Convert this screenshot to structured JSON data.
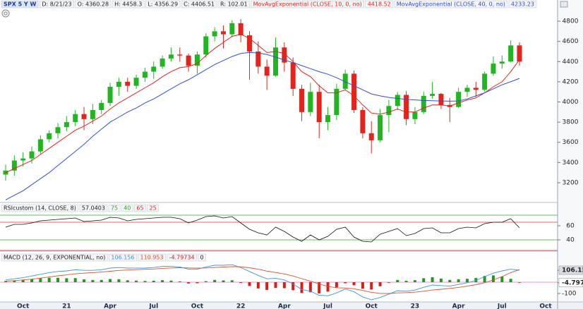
{
  "header": {
    "symbol": "SPX 5 Y W",
    "date": "D: 8/21/23",
    "open": "O: 4360.28",
    "high": "H: 4458.3",
    "low": "L: 4356.29",
    "close": "C: 4406.51",
    "range": "R: 102.01"
  },
  "chart_data": [
    {
      "type": "candlestick",
      "categories": [
        null,
        null,
        "Oct",
        null,
        null,
        null,
        null,
        "21",
        null,
        null,
        null,
        null,
        "Apr",
        null,
        null,
        null,
        null,
        "Jul",
        null,
        null,
        null,
        null,
        "Oct",
        null,
        null,
        null,
        null,
        "22",
        null,
        null,
        null,
        null,
        "Apr",
        null,
        null,
        null,
        null,
        "Jul",
        null,
        null,
        null,
        null,
        "Oct",
        null,
        null,
        null,
        null,
        "23",
        null,
        null,
        null,
        null,
        "Apr",
        null,
        null,
        null,
        null,
        "Jul",
        null,
        null,
        null,
        null,
        "Oct"
      ],
      "open": [
        3280,
        3320,
        3420,
        3440,
        3510,
        3630,
        3690,
        3750,
        3800,
        3880,
        3830,
        3920,
        3990,
        4150,
        4200,
        4160,
        4240,
        4300,
        4350,
        4430,
        4470,
        4460,
        4360,
        4470,
        4650,
        4700,
        4670,
        4780,
        4660,
        4500,
        4350,
        4260,
        4540,
        4390,
        4130,
        3900,
        4100,
        3800,
        3870,
        4130,
        4280,
        3920,
        3690,
        3620,
        3870,
        3960,
        4070,
        3830,
        3900,
        4060,
        4080,
        3970,
        3950,
        4100,
        4140,
        4120,
        4280,
        4380,
        4400,
        4560,
        null,
        null,
        null
      ],
      "high": [
        3380,
        3470,
        3500,
        3560,
        3670,
        3720,
        3790,
        3860,
        3920,
        3950,
        3980,
        4020,
        4190,
        4240,
        4240,
        4270,
        4340,
        4400,
        4460,
        4540,
        4540,
        4480,
        4500,
        4680,
        4740,
        4760,
        4810,
        4820,
        4700,
        4600,
        4420,
        4640,
        4590,
        4440,
        4170,
        4190,
        4170,
        3950,
        4180,
        4320,
        4310,
        3950,
        3810,
        3930,
        4020,
        4100,
        4110,
        3950,
        4100,
        4200,
        4090,
        4040,
        4140,
        4170,
        4200,
        4300,
        4450,
        4460,
        4610,
        4590,
        null,
        null,
        null
      ],
      "low": [
        3220,
        3270,
        3360,
        3390,
        3480,
        3600,
        3640,
        3710,
        3760,
        3720,
        3780,
        3880,
        3960,
        4060,
        4100,
        4130,
        4200,
        4230,
        4330,
        4400,
        4400,
        4300,
        4280,
        4440,
        4600,
        4530,
        4640,
        4590,
        4220,
        4280,
        4120,
        4250,
        4300,
        4060,
        3810,
        3860,
        3640,
        3720,
        3820,
        4120,
        3890,
        3640,
        3490,
        3600,
        3700,
        3920,
        3770,
        3780,
        3880,
        4030,
        3930,
        3800,
        3940,
        4050,
        4050,
        4100,
        4260,
        4330,
        4390,
        4360,
        null,
        null,
        null
      ],
      "close": [
        3320,
        3420,
        3440,
        3510,
        3630,
        3690,
        3750,
        3800,
        3880,
        3830,
        3920,
        3990,
        4150,
        4200,
        4160,
        4240,
        4300,
        4350,
        4430,
        4470,
        4460,
        4360,
        4470,
        4650,
        4700,
        4670,
        4780,
        4660,
        4500,
        4350,
        4260,
        4540,
        4390,
        4130,
        3900,
        4100,
        3800,
        3870,
        4130,
        4280,
        3920,
        3690,
        3620,
        3870,
        3960,
        4070,
        3830,
        3900,
        4060,
        4080,
        3970,
        3950,
        4100,
        4140,
        4120,
        4280,
        4380,
        4400,
        4560,
        4400,
        null,
        null,
        null
      ],
      "up_color": "#22b522",
      "down_color": "#e3241c",
      "series": [
        {
          "name": "MovAvgExponential (CLOSE, 10, 0, no)",
          "last_value": "4418.52",
          "color": "#e3241c",
          "values": [
            3300,
            3340,
            3380,
            3420,
            3480,
            3540,
            3600,
            3660,
            3720,
            3760,
            3810,
            3860,
            3930,
            3990,
            4040,
            4090,
            4140,
            4190,
            4250,
            4300,
            4340,
            4350,
            4380,
            4460,
            4530,
            4590,
            4650,
            4670,
            4630,
            4560,
            4490,
            4500,
            4480,
            4400,
            4300,
            4250,
            4160,
            4090,
            4090,
            4120,
            4060,
            3970,
            3890,
            3880,
            3900,
            3930,
            3900,
            3900,
            3940,
            3970,
            3970,
            3960,
            3990,
            4020,
            4040,
            4090,
            4150,
            4200,
            4300,
            4418.52,
            null,
            null,
            null
          ]
        },
        {
          "name": "MovAvgExponential (CLOSE, 40, 0, no)",
          "last_value": "4233.23",
          "color": "#2f4fd0",
          "values": [
            3030,
            3075,
            3120,
            3180,
            3240,
            3300,
            3370,
            3440,
            3510,
            3580,
            3660,
            3730,
            3800,
            3850,
            3900,
            3940,
            3990,
            4030,
            4080,
            4130,
            4180,
            4220,
            4270,
            4320,
            4370,
            4410,
            4450,
            4480,
            4490,
            4485,
            4470,
            4445,
            4415,
            4390,
            4360,
            4330,
            4300,
            4275,
            4240,
            4200,
            4160,
            4120,
            4080,
            4060,
            4045,
            4035,
            4025,
            4020,
            4015,
            4012,
            4010,
            4008,
            4010,
            4030,
            4060,
            4090,
            4130,
            4170,
            4200,
            4233.23,
            null,
            null,
            null
          ]
        }
      ],
      "ylim": [
        3018,
        5010
      ],
      "yticks": [
        4800,
        4600,
        4400,
        4200,
        4000,
        3800,
        3600,
        3400,
        3200
      ]
    },
    {
      "type": "line",
      "title": "RSIcustom (14, CLOSE, 8)",
      "last_value": "57.0403",
      "levels": [
        {
          "value": 75,
          "color": "#2fa52f"
        },
        {
          "value": 40,
          "color": "#2fa52f"
        },
        {
          "value": 65,
          "color": "#d9302a"
        },
        {
          "value": 25,
          "color": "#d9302a"
        }
      ],
      "series": [
        {
          "color": "#111111",
          "values": [
            58,
            62,
            62,
            64,
            67,
            68,
            69,
            70,
            71,
            66,
            67,
            68,
            72,
            71,
            67,
            69,
            70,
            71,
            72,
            72,
            70,
            64,
            68,
            73,
            74,
            71,
            73,
            64,
            55,
            50,
            47,
            58,
            52,
            44,
            38,
            47,
            40,
            45,
            55,
            58,
            44,
            38,
            37,
            48,
            52,
            56,
            46,
            49,
            56,
            57,
            50,
            50,
            56,
            58,
            57,
            63,
            65,
            65,
            70,
            57,
            null,
            null,
            null
          ]
        }
      ],
      "ylim": [
        26,
        80
      ],
      "yticks": [
        60,
        40
      ]
    },
    {
      "type": "macd",
      "title": "MACD (12, 26, 9, EXPONENTIAL, no)",
      "zero_level": 0,
      "zero_color": "#e070d0",
      "series": [
        {
          "last_value": "106.156",
          "color": "#3f93e0",
          "values": [
            20,
            30,
            40,
            55,
            70,
            85,
            95,
            100,
            110,
            105,
            105,
            110,
            125,
            130,
            125,
            125,
            125,
            130,
            140,
            140,
            135,
            115,
            115,
            135,
            150,
            150,
            155,
            130,
            95,
            60,
            30,
            35,
            20,
            -15,
            -65,
            -80,
            -115,
            -120,
            -95,
            -60,
            -85,
            -130,
            -155,
            -135,
            -105,
            -75,
            -80,
            -70,
            -45,
            -25,
            -30,
            -35,
            -20,
            -5,
            15,
            50,
            80,
            100,
            115,
            106,
            null,
            null,
            null
          ]
        },
        {
          "last_value": "110.953",
          "color": "#e0502a",
          "values": [
            10,
            14,
            20,
            27,
            36,
            46,
            56,
            65,
            74,
            80,
            85,
            90,
            97,
            104,
            108,
            111,
            114,
            117,
            122,
            126,
            128,
            126,
            124,
            126,
            130,
            134,
            138,
            136,
            128,
            115,
            98,
            86,
            73,
            55,
            31,
            9,
            -16,
            -37,
            -49,
            -51,
            -58,
            -73,
            -90,
            -99,
            -100,
            -95,
            -92,
            -88,
            -80,
            -69,
            -62,
            -55,
            -46,
            -35,
            -22,
            -5,
            20,
            50,
            85,
            111,
            null,
            null,
            null
          ]
        }
      ],
      "histogram": {
        "last_value": "-4.79734",
        "up_color": "#1f9a1f",
        "down_color": "#d4201a",
        "values": [
          10,
          16,
          20,
          28,
          34,
          39,
          39,
          35,
          36,
          25,
          20,
          20,
          28,
          26,
          17,
          14,
          11,
          13,
          18,
          14,
          7,
          -11,
          -9,
          9,
          20,
          16,
          17,
          -6,
          -33,
          -55,
          -68,
          -51,
          -53,
          -70,
          -96,
          -89,
          -99,
          -83,
          -46,
          -9,
          -27,
          -57,
          -65,
          -36,
          -5,
          20,
          12,
          18,
          35,
          44,
          32,
          20,
          26,
          30,
          37,
          55,
          60,
          50,
          30,
          -5,
          null,
          null,
          null
        ]
      },
      "ylim": [
        -187,
        262
      ],
      "yticks": [
        106.15,
        -4.797,
        -100
      ]
    }
  ]
}
